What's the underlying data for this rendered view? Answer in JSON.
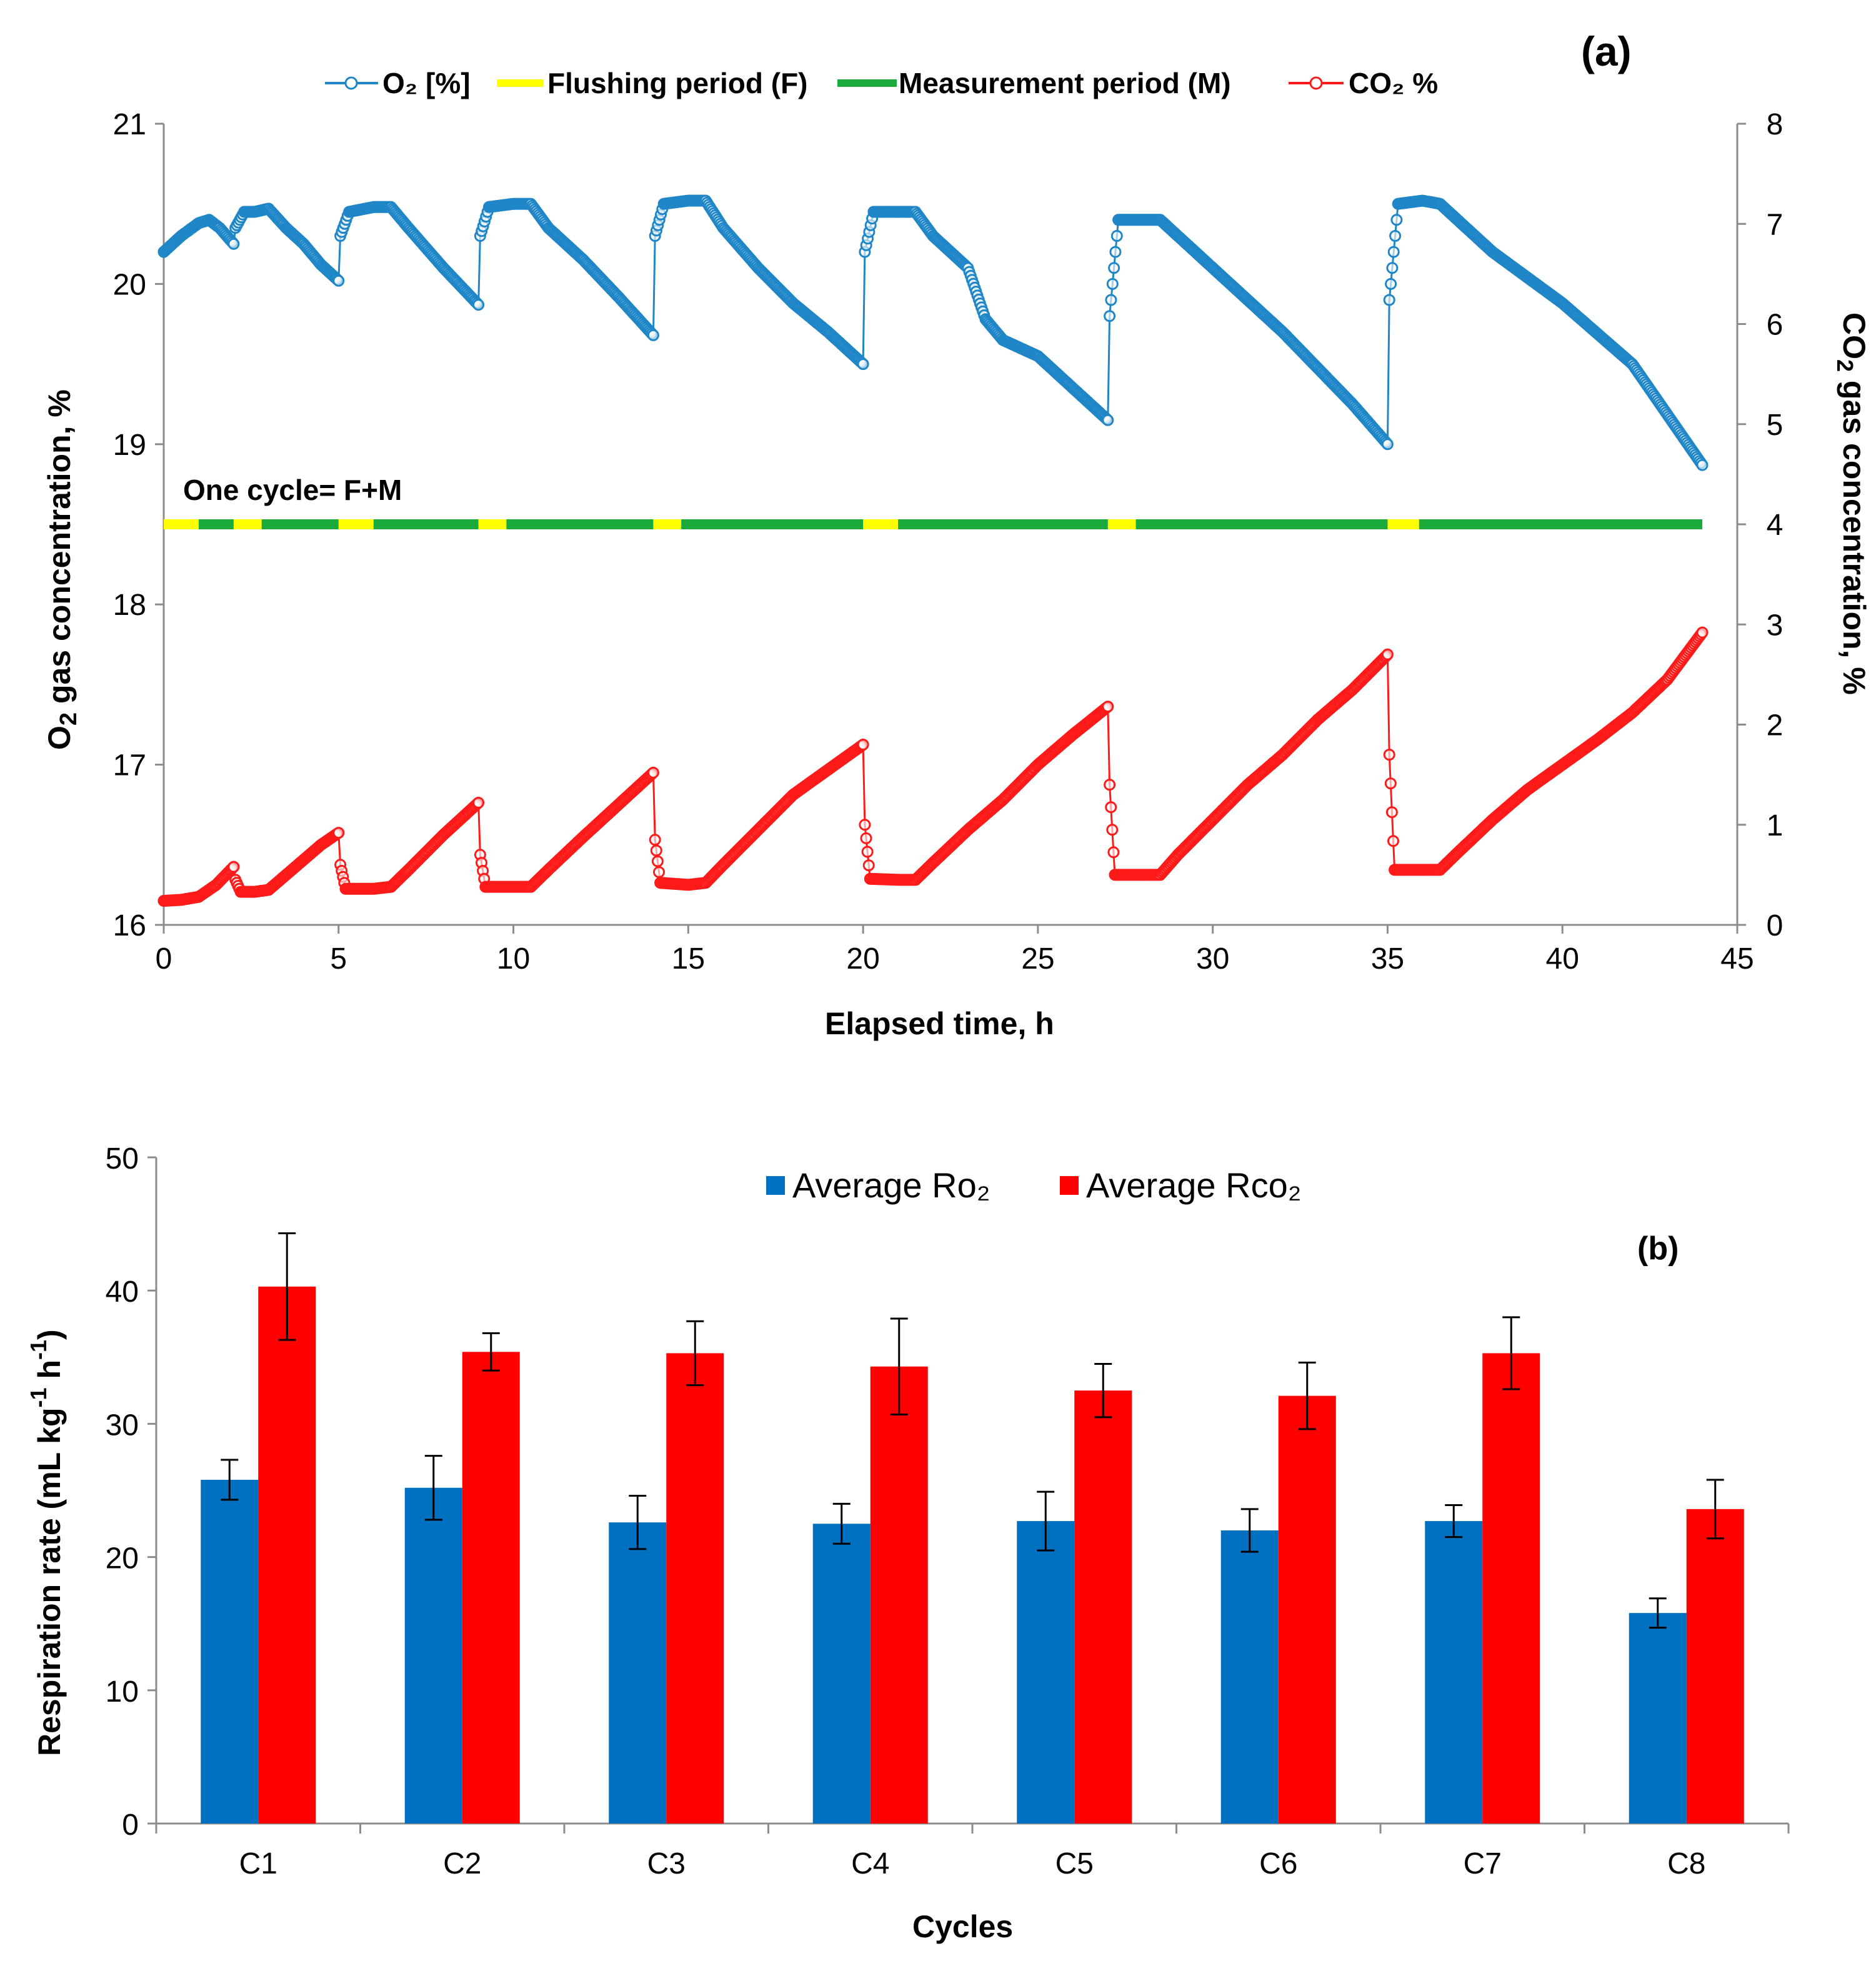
{
  "chart_data": [
    {
      "panel_label": "(a)",
      "type": "line",
      "xlabel": "Elapsed time, h",
      "ylabel_left": "O2 gas concentration, %",
      "ylabel_right": "CO2 gas concentration, %",
      "xlim": [
        0,
        45
      ],
      "ylim_left": [
        16,
        21
      ],
      "ylim_right": [
        0,
        8
      ],
      "xticks": [
        "0",
        "5",
        "10",
        "15",
        "20",
        "25",
        "30",
        "35",
        "40",
        "45"
      ],
      "yticks_left": [
        "16",
        "17",
        "18",
        "19",
        "20",
        "21"
      ],
      "yticks_right": [
        "0",
        "1",
        "2",
        "3",
        "4",
        "5",
        "6",
        "7",
        "8"
      ],
      "legend": {
        "o2": "O₂ [%]",
        "flush": "Flushing period (F)",
        "measure": "Measurement period (M)",
        "co2": "CO₂ %"
      },
      "annotation": "One cycle= F+M",
      "colors": {
        "o2": "#1f86c8",
        "co2": "#ff1a1a",
        "flush": "#ffff00",
        "measure": "#1aaa3c"
      },
      "cycle_bar_level_o2": 18.5,
      "flushing_periods": [
        [
          0,
          1
        ],
        [
          2,
          2.8
        ],
        [
          5,
          6
        ],
        [
          9,
          9.8
        ],
        [
          14,
          14.8
        ],
        [
          20,
          21
        ],
        [
          27,
          27.8
        ],
        [
          35,
          35.9
        ]
      ],
      "measurement_periods": [
        [
          1,
          2
        ],
        [
          2.8,
          5
        ],
        [
          6,
          9
        ],
        [
          9.8,
          14
        ],
        [
          14.8,
          20
        ],
        [
          21,
          27
        ],
        [
          27.8,
          35
        ],
        [
          35.9,
          44
        ]
      ],
      "o2_series": {
        "name": "O2 [%]",
        "x": [
          0,
          0.5,
          1.0,
          1.3,
          1.6,
          2.0,
          2.05,
          2.3,
          2.6,
          3.0,
          3.5,
          4.0,
          4.5,
          5.0,
          5.05,
          5.3,
          6.0,
          6.5,
          7.0,
          8.0,
          9.0,
          9.05,
          9.3,
          10.0,
          10.5,
          11.0,
          12.0,
          13.0,
          14.0,
          14.05,
          14.3,
          15.0,
          15.5,
          16.0,
          17.0,
          18.0,
          19.0,
          20.0,
          20.05,
          20.3,
          21.0,
          21.5,
          22.0,
          23.0,
          23.5,
          24.0,
          25.0,
          26.0,
          27.0,
          27.05,
          27.3,
          28.0,
          28.5,
          30.0,
          32.0,
          34.0,
          35.0,
          35.05,
          35.3,
          36.0,
          36.5,
          38.0,
          40.0,
          42.0,
          44.0
        ],
        "y": [
          20.2,
          20.3,
          20.38,
          20.4,
          20.35,
          20.25,
          20.35,
          20.45,
          20.45,
          20.47,
          20.35,
          20.25,
          20.12,
          20.02,
          20.3,
          20.45,
          20.48,
          20.48,
          20.35,
          20.1,
          19.87,
          20.3,
          20.48,
          20.5,
          20.5,
          20.35,
          20.15,
          19.92,
          19.68,
          20.3,
          20.5,
          20.52,
          20.52,
          20.35,
          20.1,
          19.88,
          19.7,
          19.5,
          20.2,
          20.45,
          20.45,
          20.45,
          20.3,
          20.1,
          19.78,
          19.65,
          19.55,
          19.35,
          19.15,
          19.8,
          20.4,
          20.4,
          20.4,
          20.1,
          19.7,
          19.25,
          19.0,
          19.9,
          20.5,
          20.52,
          20.5,
          20.2,
          19.88,
          19.5,
          18.87
        ]
      },
      "co2_series": {
        "name": "CO2 %",
        "x": [
          0,
          0.5,
          1.0,
          1.5,
          2.0,
          2.05,
          2.2,
          2.6,
          3.0,
          3.5,
          4.0,
          4.5,
          5.0,
          5.05,
          5.2,
          6.0,
          6.5,
          7.0,
          8.0,
          9.0,
          9.05,
          9.2,
          10.0,
          10.5,
          11.0,
          12.0,
          13.0,
          14.0,
          14.05,
          14.2,
          15.0,
          15.5,
          16.0,
          17.0,
          18.0,
          19.0,
          20.0,
          20.05,
          20.2,
          21.0,
          21.5,
          22.0,
          23.0,
          24.0,
          25.0,
          26.0,
          27.0,
          27.05,
          27.2,
          28.0,
          28.5,
          29.0,
          30.0,
          31.0,
          32.0,
          33.0,
          34.0,
          35.0,
          35.05,
          35.2,
          36.0,
          36.5,
          37.0,
          38.0,
          39.0,
          40.0,
          41.0,
          42.0,
          43.0,
          44.0
        ],
        "y": [
          0.24,
          0.25,
          0.28,
          0.4,
          0.58,
          0.45,
          0.33,
          0.33,
          0.35,
          0.5,
          0.65,
          0.8,
          0.92,
          0.6,
          0.36,
          0.36,
          0.38,
          0.55,
          0.9,
          1.22,
          0.7,
          0.38,
          0.38,
          0.38,
          0.55,
          0.88,
          1.2,
          1.52,
          0.85,
          0.42,
          0.4,
          0.42,
          0.6,
          0.95,
          1.3,
          1.55,
          1.8,
          1.0,
          0.46,
          0.45,
          0.45,
          0.62,
          0.95,
          1.25,
          1.6,
          1.9,
          2.18,
          1.4,
          0.5,
          0.5,
          0.5,
          0.7,
          1.05,
          1.4,
          1.7,
          2.05,
          2.35,
          2.7,
          1.7,
          0.55,
          0.55,
          0.55,
          0.72,
          1.05,
          1.35,
          1.6,
          1.85,
          2.12,
          2.45,
          2.92
        ]
      }
    },
    {
      "panel_label": "(b)",
      "type": "bar",
      "xlabel": "Cycles",
      "ylabel": "Respiration rate (mL kg⁻¹ h⁻¹)",
      "ylim": [
        0,
        50
      ],
      "yticks": [
        "0",
        "10",
        "20",
        "30",
        "40",
        "50"
      ],
      "categories": [
        "C1",
        "C2",
        "C3",
        "C4",
        "C5",
        "C6",
        "C7",
        "C8"
      ],
      "series": [
        {
          "name": "Average Ro₂",
          "color": "#0070c0",
          "values": [
            25.8,
            25.2,
            22.6,
            22.5,
            22.7,
            22.0,
            22.7,
            15.8
          ],
          "errors": [
            1.5,
            2.4,
            2.0,
            1.5,
            2.2,
            1.6,
            1.2,
            1.1
          ]
        },
        {
          "name": "Average Rco₂",
          "color": "#ff0000",
          "values": [
            40.3,
            35.4,
            35.3,
            34.3,
            32.5,
            32.1,
            35.3,
            23.6
          ],
          "errors": [
            4.0,
            1.4,
            2.4,
            3.6,
            2.0,
            2.5,
            2.7,
            2.2
          ]
        }
      ]
    }
  ]
}
